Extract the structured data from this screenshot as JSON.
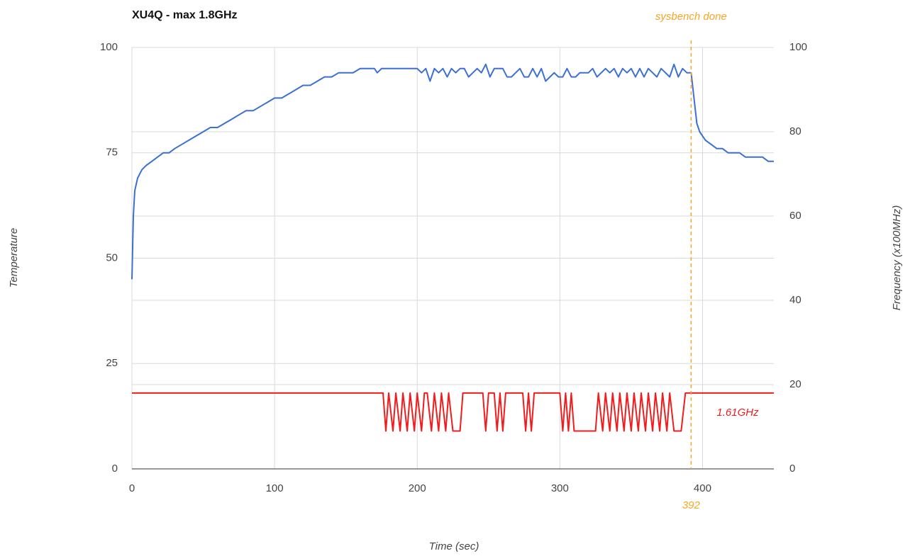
{
  "chart_data": {
    "type": "line",
    "title": "XU4Q - max 1.8GHz",
    "xlabel": "Time (sec)",
    "ylabel": "Temperature",
    "y2label": "Frequency (x100MHz)",
    "xlim": [
      0,
      450
    ],
    "xticks": [
      0,
      100,
      200,
      300,
      400
    ],
    "ylim": [
      0,
      100
    ],
    "yticks": [
      0,
      25,
      50,
      75,
      100
    ],
    "y2lim": [
      0,
      100
    ],
    "y2ticks": [
      0,
      20,
      40,
      60,
      80,
      100
    ],
    "grid": true,
    "series": [
      {
        "color": "#3c6fd4",
        "x": [
          0,
          1,
          2,
          4,
          7,
          10,
          14,
          18,
          22,
          26,
          30,
          35,
          40,
          45,
          50,
          55,
          60,
          65,
          70,
          75,
          80,
          85,
          90,
          95,
          100,
          105,
          110,
          115,
          120,
          125,
          130,
          135,
          140,
          145,
          150,
          155,
          160,
          165,
          170,
          172,
          175,
          180,
          185,
          190,
          195,
          200,
          203,
          206,
          209,
          212,
          215,
          218,
          221,
          224,
          227,
          230,
          233,
          236,
          239,
          242,
          245,
          248,
          251,
          254,
          257,
          260,
          263,
          266,
          269,
          272,
          275,
          278,
          281,
          284,
          287,
          290,
          293,
          296,
          299,
          302,
          305,
          308,
          311,
          314,
          317,
          320,
          323,
          326,
          329,
          332,
          335,
          338,
          341,
          344,
          347,
          350,
          353,
          356,
          359,
          362,
          365,
          368,
          371,
          374,
          377,
          380,
          383,
          386,
          389,
          392,
          394,
          396,
          398,
          402,
          406,
          410,
          414,
          418,
          422,
          426,
          430,
          434,
          438,
          442,
          446,
          450
        ],
        "values": [
          45,
          60,
          66,
          69,
          71,
          72,
          73,
          74,
          75,
          75,
          76,
          77,
          78,
          79,
          80,
          81,
          81,
          82,
          83,
          84,
          85,
          85,
          86,
          87,
          88,
          88,
          89,
          90,
          91,
          91,
          92,
          93,
          93,
          94,
          94,
          94,
          95,
          95,
          95,
          94,
          95,
          95,
          95,
          95,
          95,
          95,
          94,
          95,
          92,
          95,
          94,
          95,
          93,
          95,
          94,
          95,
          95,
          93,
          94,
          95,
          94,
          96,
          93,
          95,
          95,
          95,
          93,
          93,
          94,
          95,
          93,
          93,
          95,
          93,
          95,
          92,
          93,
          94,
          93,
          93,
          95,
          93,
          93,
          94,
          94,
          94,
          95,
          93,
          94,
          95,
          94,
          95,
          93,
          95,
          94,
          95,
          93,
          95,
          93,
          95,
          94,
          93,
          95,
          94,
          93,
          96,
          93,
          95,
          94,
          94,
          88,
          82,
          80,
          78,
          77,
          76,
          76,
          75,
          75,
          75,
          74,
          74,
          74,
          74,
          73,
          73
        ]
      },
      {
        "color": "#f21c1c",
        "axis": "y2",
        "x": [
          0,
          176,
          178,
          180,
          183,
          185,
          188,
          190,
          193,
          195,
          198,
          200,
          203,
          205,
          207,
          210,
          212,
          215,
          217,
          220,
          222,
          225,
          230,
          232,
          246,
          248,
          250,
          254,
          256,
          258,
          260,
          262,
          274,
          276,
          278,
          280,
          282,
          300,
          302,
          304,
          306,
          308,
          310,
          325,
          327,
          330,
          332,
          335,
          337,
          340,
          342,
          345,
          347,
          350,
          352,
          355,
          357,
          360,
          362,
          365,
          367,
          370,
          372,
          375,
          377,
          380,
          385,
          388,
          450
        ],
        "values": [
          18,
          18,
          9,
          18,
          9,
          18,
          9,
          18,
          9,
          18,
          9,
          18,
          9,
          18,
          18,
          9,
          18,
          9,
          18,
          9,
          18,
          9,
          9,
          18,
          18,
          9,
          18,
          18,
          9,
          18,
          9,
          18,
          18,
          9,
          18,
          9,
          18,
          18,
          9,
          18,
          9,
          18,
          9,
          9,
          18,
          9,
          18,
          9,
          18,
          9,
          18,
          9,
          18,
          9,
          18,
          9,
          18,
          9,
          18,
          9,
          18,
          9,
          18,
          9,
          18,
          9,
          9,
          18,
          18
        ]
      }
    ],
    "annotations": [
      {
        "text": "sysbench done",
        "x": 392,
        "color": "#f5a623"
      },
      {
        "text": "1.61GHz",
        "color": "#f21c1c"
      }
    ]
  }
}
